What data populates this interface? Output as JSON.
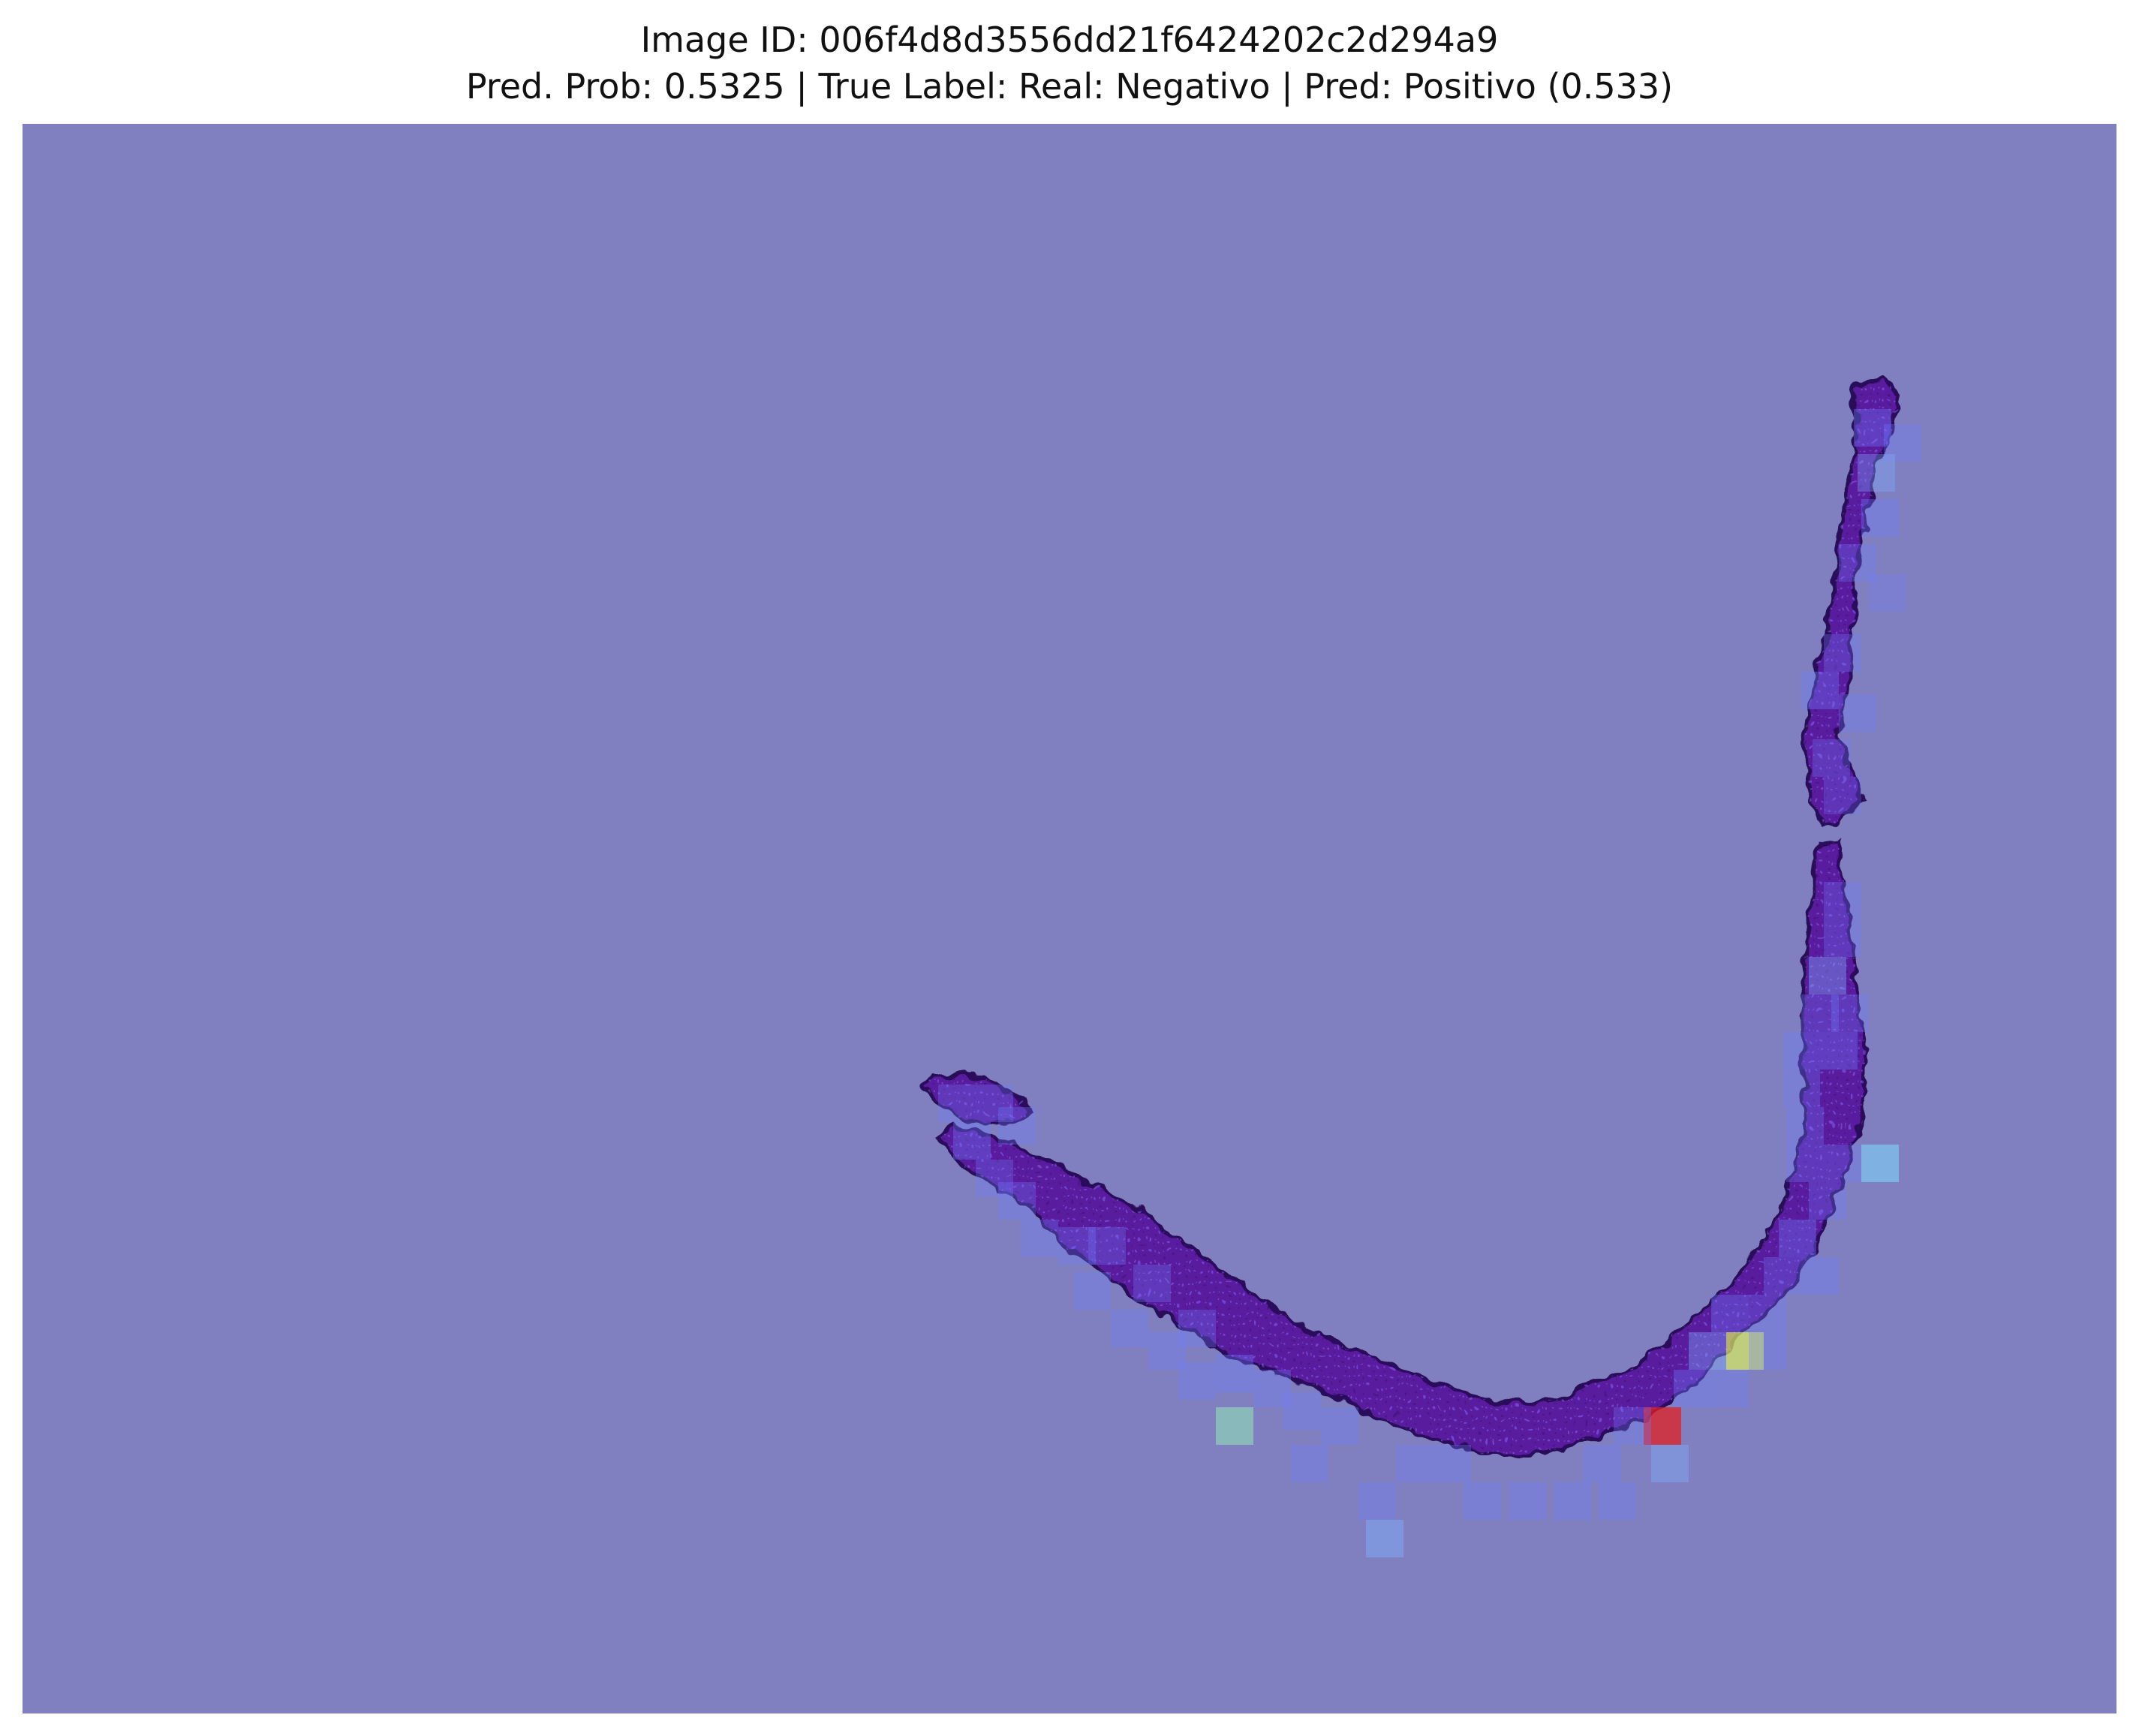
{
  "title": {
    "line1": "Image ID: 006f4d8d3556dd21f6424202c2d294a9",
    "line2": "Pred. Prob: 0.5325 | True Label: Real: Negativo | Pred: Positivo (0.533)"
  },
  "overlay": {
    "background_color": "#8080c0",
    "tissue_color": "#5a1c9e",
    "tissue_edge_color": "#2a0a5a",
    "patch_colors": {
      "low": "#6f7dff",
      "light_blue": "#7fb0ff",
      "cyan": "#7ed8ff",
      "green": "#8fe0b8",
      "yellow": "#d8f060",
      "red": "#e02020"
    }
  }
}
